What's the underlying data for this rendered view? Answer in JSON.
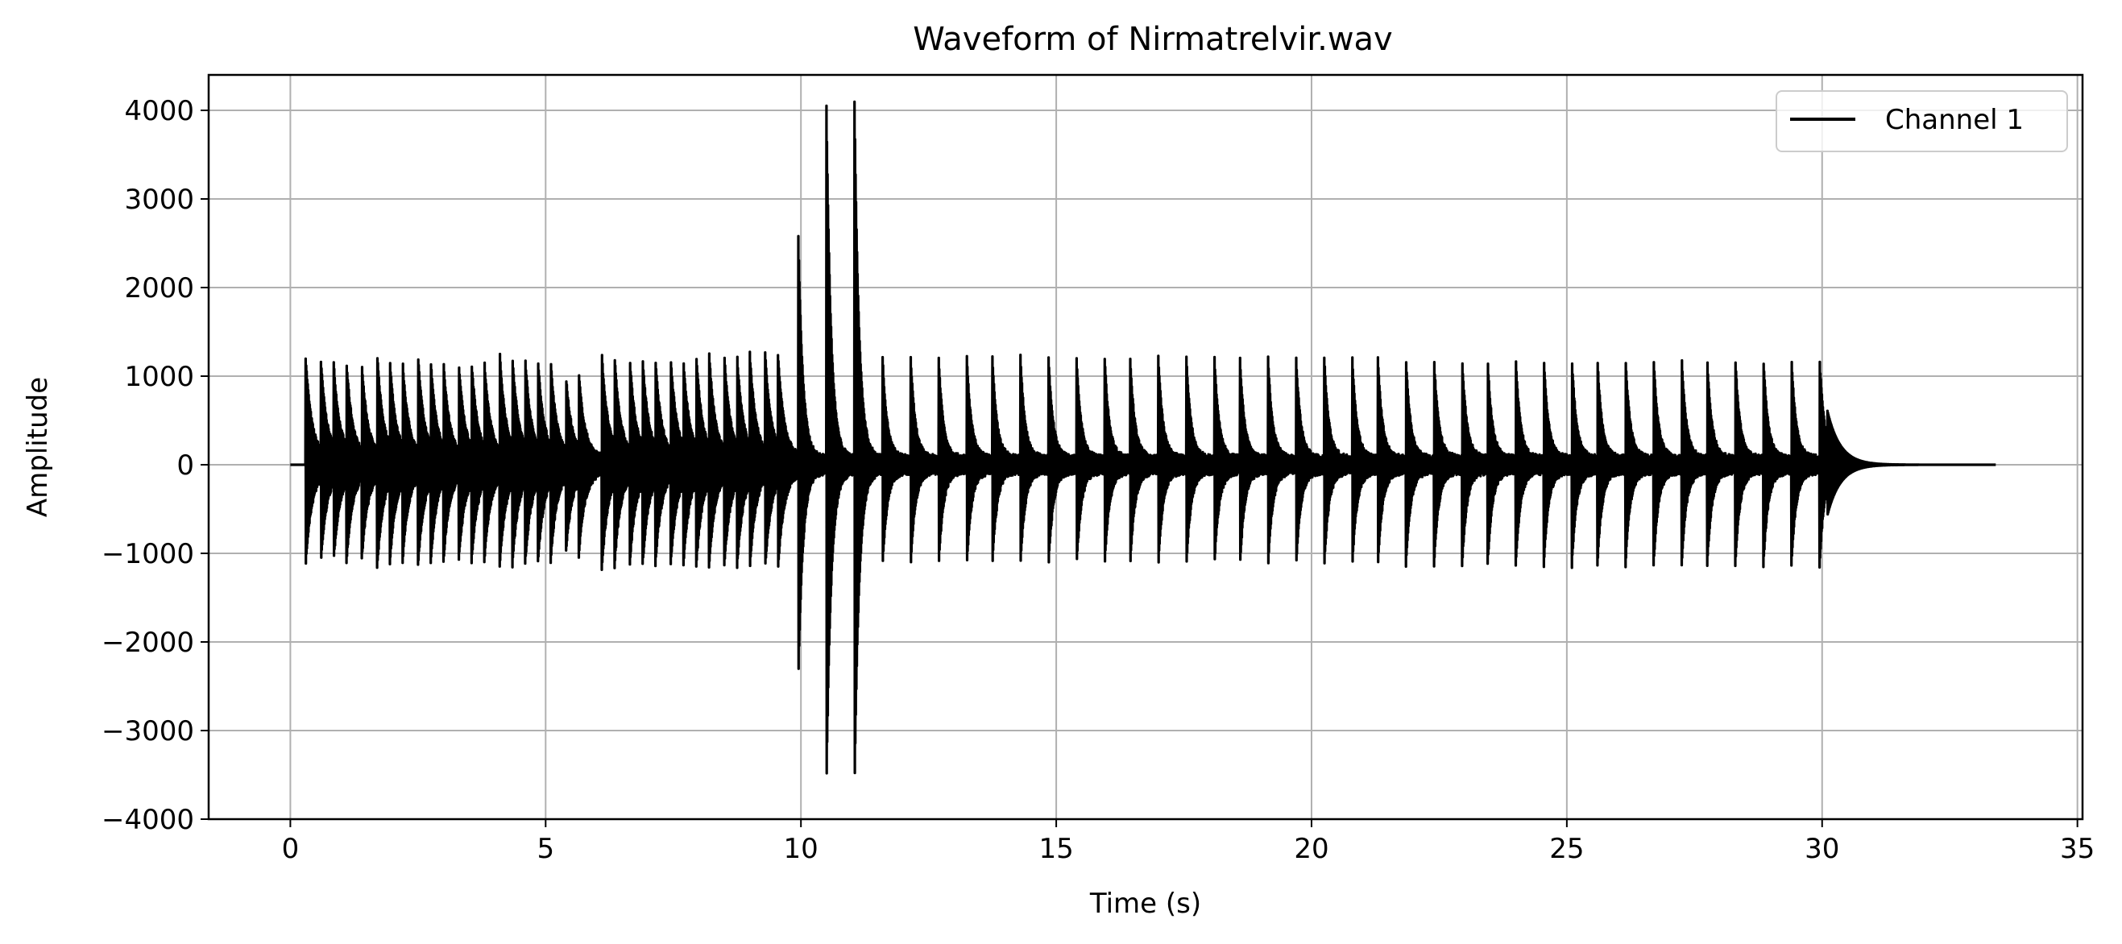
{
  "chart_data": {
    "type": "line",
    "title": "Waveform of Nirmatrelvir.wav",
    "xlabel": "Time (s)",
    "ylabel": "Amplitude",
    "xlim": [
      -1.6,
      35.1
    ],
    "ylim": [
      -4000,
      4400
    ],
    "x_ticks": [
      0,
      5,
      10,
      15,
      20,
      25,
      30,
      35
    ],
    "x_tick_labels": [
      "0",
      "5",
      "10",
      "15",
      "20",
      "25",
      "30",
      "35"
    ],
    "y_ticks": [
      -4000,
      -3000,
      -2000,
      -1000,
      0,
      1000,
      2000,
      3000,
      4000
    ],
    "y_tick_labels": [
      "−4000",
      "−3000",
      "−2000",
      "−1000",
      "0",
      "1000",
      "2000",
      "3000",
      "4000"
    ],
    "grid": true,
    "legend_position": "top-right",
    "series": [
      {
        "name": "Channel 1",
        "color": "#000000",
        "signal_start": 0.3,
        "signal_end": 33.4,
        "pulses": [
          {
            "t": 0.3,
            "pos": 1130,
            "neg": -1050
          },
          {
            "t": 0.6,
            "pos": 1080,
            "neg": -1000
          },
          {
            "t": 0.85,
            "pos": 1060,
            "neg": -990
          },
          {
            "t": 1.1,
            "pos": 1080,
            "neg": -1010
          },
          {
            "t": 1.4,
            "pos": 1050,
            "neg": -980
          },
          {
            "t": 1.7,
            "pos": 1180,
            "neg": -1080
          },
          {
            "t": 1.95,
            "pos": 1100,
            "neg": -1020
          },
          {
            "t": 2.2,
            "pos": 1080,
            "neg": -1000
          },
          {
            "t": 2.5,
            "pos": 1160,
            "neg": -1060
          },
          {
            "t": 2.75,
            "pos": 1100,
            "neg": -1020
          },
          {
            "t": 3.0,
            "pos": 1080,
            "neg": -1000
          },
          {
            "t": 3.3,
            "pos": 1060,
            "neg": -990
          },
          {
            "t": 3.55,
            "pos": 1080,
            "neg": -1010
          },
          {
            "t": 3.8,
            "pos": 1100,
            "neg": -1020
          },
          {
            "t": 4.1,
            "pos": 1200,
            "neg": -1080
          },
          {
            "t": 4.35,
            "pos": 1150,
            "neg": -1050
          },
          {
            "t": 4.6,
            "pos": 1130,
            "neg": -1040
          },
          {
            "t": 4.85,
            "pos": 1100,
            "neg": -1020
          },
          {
            "t": 5.1,
            "pos": 1080,
            "neg": -1000
          },
          {
            "t": 5.4,
            "pos": 900,
            "neg": -900
          },
          {
            "t": 5.65,
            "pos": 950,
            "neg": -940
          },
          {
            "t": 6.1,
            "pos": 1180,
            "neg": -1100
          },
          {
            "t": 6.35,
            "pos": 1150,
            "neg": -1060
          },
          {
            "t": 6.65,
            "pos": 1100,
            "neg": -1030
          },
          {
            "t": 6.9,
            "pos": 1120,
            "neg": -1050
          },
          {
            "t": 7.15,
            "pos": 1110,
            "neg": -1040
          },
          {
            "t": 7.45,
            "pos": 1130,
            "neg": -1050
          },
          {
            "t": 7.7,
            "pos": 1100,
            "neg": -1030
          },
          {
            "t": 7.95,
            "pos": 1150,
            "neg": -1060
          },
          {
            "t": 8.2,
            "pos": 1200,
            "neg": -1080
          },
          {
            "t": 8.5,
            "pos": 1150,
            "neg": -1060
          },
          {
            "t": 8.75,
            "pos": 1160,
            "neg": -1070
          },
          {
            "t": 9.0,
            "pos": 1170,
            "neg": -1080
          },
          {
            "t": 9.3,
            "pos": 1180,
            "neg": -1090
          },
          {
            "t": 9.55,
            "pos": 1170,
            "neg": -1100
          },
          {
            "t": 9.95,
            "pos": 2480,
            "neg": -2330
          },
          {
            "t": 10.5,
            "pos": 3980,
            "neg": -3600
          },
          {
            "t": 11.05,
            "pos": 4000,
            "neg": -3600
          },
          {
            "t": 11.6,
            "pos": 1130,
            "neg": -1060
          },
          {
            "t": 12.15,
            "pos": 1130,
            "neg": -1060
          },
          {
            "t": 12.7,
            "pos": 1110,
            "neg": -1050
          },
          {
            "t": 13.25,
            "pos": 1130,
            "neg": -1060
          },
          {
            "t": 13.75,
            "pos": 1120,
            "neg": -1050
          },
          {
            "t": 14.3,
            "pos": 1140,
            "neg": -1060
          },
          {
            "t": 14.85,
            "pos": 1130,
            "neg": -1060
          },
          {
            "t": 15.4,
            "pos": 1110,
            "neg": -1050
          },
          {
            "t": 15.95,
            "pos": 1120,
            "neg": -1060
          },
          {
            "t": 16.45,
            "pos": 1120,
            "neg": -1060
          },
          {
            "t": 17.0,
            "pos": 1140,
            "neg": -1060
          },
          {
            "t": 17.55,
            "pos": 1130,
            "neg": -1060
          },
          {
            "t": 18.1,
            "pos": 1120,
            "neg": -1050
          },
          {
            "t": 18.6,
            "pos": 1120,
            "neg": -1050
          },
          {
            "t": 19.15,
            "pos": 1110,
            "neg": -1060
          },
          {
            "t": 19.7,
            "pos": 1120,
            "neg": -1060
          },
          {
            "t": 20.25,
            "pos": 1130,
            "neg": -1060
          },
          {
            "t": 20.8,
            "pos": 1120,
            "neg": -1050
          },
          {
            "t": 21.3,
            "pos": 1120,
            "neg": -1060
          },
          {
            "t": 21.85,
            "pos": 1130,
            "neg": -1060
          },
          {
            "t": 22.4,
            "pos": 1120,
            "neg": -1060
          },
          {
            "t": 22.95,
            "pos": 1130,
            "neg": -1060
          },
          {
            "t": 23.45,
            "pos": 1110,
            "neg": -1050
          },
          {
            "t": 24.0,
            "pos": 1120,
            "neg": -1060
          },
          {
            "t": 24.55,
            "pos": 1130,
            "neg": -1060
          },
          {
            "t": 25.1,
            "pos": 1120,
            "neg": -1060
          },
          {
            "t": 25.6,
            "pos": 1120,
            "neg": -1050
          },
          {
            "t": 26.15,
            "pos": 1130,
            "neg": -1060
          },
          {
            "t": 26.7,
            "pos": 1120,
            "neg": -1060
          },
          {
            "t": 27.25,
            "pos": 1130,
            "neg": -1060
          },
          {
            "t": 27.75,
            "pos": 1120,
            "neg": -1060
          },
          {
            "t": 28.3,
            "pos": 1140,
            "neg": -1060
          },
          {
            "t": 28.85,
            "pos": 1130,
            "neg": -1060
          },
          {
            "t": 29.4,
            "pos": 1130,
            "neg": -1060
          },
          {
            "t": 29.95,
            "pos": 1130,
            "neg": -1060
          }
        ]
      }
    ]
  }
}
